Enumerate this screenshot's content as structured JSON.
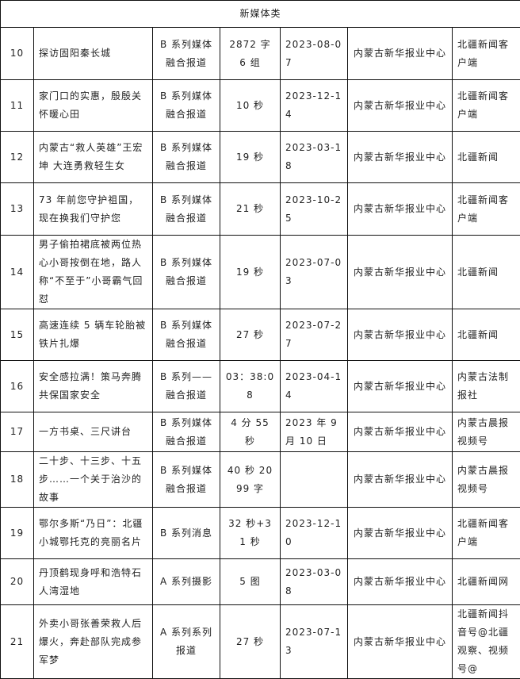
{
  "section_title": "新媒体类",
  "rows": [
    {
      "no": "10",
      "title": "探访固阳秦长城",
      "type": "B 系列媒体融合报道",
      "length": "2872 字 6 组",
      "date": "2023-08-07",
      "unit": "内蒙古新华报业中心",
      "publisher": "北疆新闻客户端"
    },
    {
      "no": "11",
      "title": "家门口的实惠，殷殷关怀暖心田",
      "type": "B 系列媒体融合报道",
      "length": "10 秒",
      "date": "2023-12-14",
      "unit": "内蒙古新华报业中心",
      "publisher": "北疆新闻客户端"
    },
    {
      "no": "12",
      "title": "内蒙古“救人英雄”王宏坤 大连勇救轻生女",
      "type": "B 系列媒体融合报道",
      "length": "19 秒",
      "date": "2023-03-18",
      "unit": "内蒙古新华报业中心",
      "publisher": "北疆新闻"
    },
    {
      "no": "13",
      "title": "73 年前您守护祖国，现在换我们守护您",
      "type": "B 系列媒体融合报道",
      "length": "21 秒",
      "date": "2023-10-25",
      "unit": "内蒙古新华报业中心",
      "publisher": "北疆新闻客户端"
    },
    {
      "no": "14",
      "title": "男子偷拍裙底被两位热心小哥按倒在地，路人称“不至于”小哥霸气回怼",
      "type": "B 系列媒体融合报道",
      "length": "19 秒",
      "date": "2023-07-03",
      "unit": "内蒙古新华报业中心",
      "publisher": "北疆新闻"
    },
    {
      "no": "15",
      "title": "高速连续 5 辆车轮胎被铁片扎爆",
      "type": "B 系列媒体融合报道",
      "length": "27 秒",
      "date": "2023-07-27",
      "unit": "内蒙古新华报业中心",
      "publisher": "北疆新闻"
    },
    {
      "no": "16",
      "title": "安全感拉满！策马奔腾共保国家安全",
      "type": "B 系列——融合报道",
      "length": "03：38:08",
      "date": "2023-04-14",
      "unit": "内蒙古新华报业中心",
      "publisher": "内蒙古法制报社"
    },
    {
      "no": "17",
      "title": "一方书桌、三尺讲台",
      "type": "B 系列媒体融合报道",
      "length": "4 分 55 秒",
      "date": "2023 年 9 月 10 日",
      "unit": "内蒙古新华报业中心",
      "publisher": "内蒙古晨报视频号"
    },
    {
      "no": "18",
      "title": "二十步、十三步、十五步……一个关于治沙的故事",
      "type": "B 系列媒体融合报道",
      "length": "40 秒 2099 字",
      "date": "",
      "unit": "内蒙古新华报业中心",
      "publisher": "内蒙古晨报视频号"
    },
    {
      "no": "19",
      "title": "鄂尔多斯“乃日”：北疆小城鄂托克的亮丽名片",
      "type": "B 系列消息",
      "length": "32 秒+31 秒",
      "date": "2023-12-10",
      "unit": "内蒙古新华报业中心",
      "publisher": "北疆新闻客户端"
    },
    {
      "no": "20",
      "title": "丹顶鹤现身呼和浩特石人湾湿地",
      "type": "A 系列摄影",
      "length": "5 图",
      "date": "2023-03-08",
      "unit": "内蒙古新华报业中心",
      "publisher": "北疆新闻网"
    },
    {
      "no": "21",
      "title": "外卖小哥张善荣救人后爆火，奔赴部队完成参军梦",
      "type": "A 系列系列报道",
      "length": "27 秒",
      "date": "2023-07-13",
      "unit": "内蒙古新华报业中心",
      "publisher": "北疆新闻抖音号@北疆观察、视频号@"
    }
  ]
}
